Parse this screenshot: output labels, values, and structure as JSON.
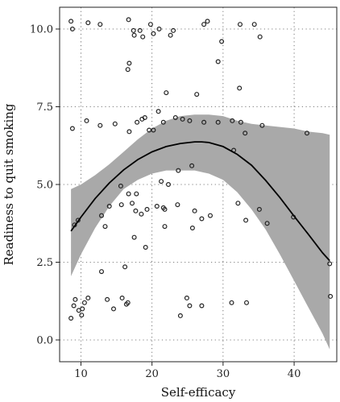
{
  "chart_data": {
    "type": "scatter",
    "title": "",
    "xlabel": "Self-efficacy",
    "ylabel": "Readiness to quit smoking",
    "xlim": [
      7,
      46
    ],
    "ylim": [
      -0.7,
      10.7
    ],
    "xticks": [
      10,
      20,
      30,
      40
    ],
    "yticks": [
      0.0,
      2.5,
      5.0,
      7.5,
      10.0
    ],
    "xtick_labels": [
      "10",
      "20",
      "30",
      "40"
    ],
    "ytick_labels": [
      "0.0",
      "2.5",
      "5.0",
      "7.5",
      "10.0"
    ],
    "grid": true,
    "legend": "none",
    "colors": {
      "band": "#a9a9a9",
      "line": "#000000",
      "points_stroke": "#222222"
    },
    "points": [
      [
        8.6,
        10.25
      ],
      [
        8.8,
        10.0
      ],
      [
        11.0,
        10.2
      ],
      [
        12.7,
        10.15
      ],
      [
        16.7,
        10.3
      ],
      [
        17.4,
        9.95
      ],
      [
        17.5,
        9.8
      ],
      [
        18.3,
        9.95
      ],
      [
        18.7,
        9.75
      ],
      [
        19.8,
        10.15
      ],
      [
        20.2,
        9.85
      ],
      [
        21.0,
        10.0
      ],
      [
        22.6,
        9.8
      ],
      [
        23.0,
        9.95
      ],
      [
        27.3,
        10.15
      ],
      [
        27.8,
        10.25
      ],
      [
        29.8,
        9.6
      ],
      [
        32.4,
        10.15
      ],
      [
        34.4,
        10.15
      ],
      [
        35.2,
        9.75
      ],
      [
        16.6,
        8.7
      ],
      [
        16.8,
        8.9
      ],
      [
        29.3,
        8.95
      ],
      [
        22.0,
        7.95
      ],
      [
        32.3,
        8.1
      ],
      [
        26.3,
        7.9
      ],
      [
        8.8,
        6.8
      ],
      [
        10.8,
        7.05
      ],
      [
        12.7,
        6.9
      ],
      [
        14.8,
        6.95
      ],
      [
        16.8,
        6.7
      ],
      [
        17.9,
        7.0
      ],
      [
        18.6,
        7.1
      ],
      [
        19.0,
        7.15
      ],
      [
        19.6,
        6.75
      ],
      [
        20.2,
        6.75
      ],
      [
        20.9,
        7.35
      ],
      [
        21.6,
        7.0
      ],
      [
        23.3,
        7.15
      ],
      [
        24.3,
        7.1
      ],
      [
        25.3,
        7.05
      ],
      [
        27.3,
        7.0
      ],
      [
        29.3,
        7.0
      ],
      [
        31.3,
        7.05
      ],
      [
        32.5,
        7.0
      ],
      [
        33.1,
        6.65
      ],
      [
        35.5,
        6.9
      ],
      [
        41.8,
        6.65
      ],
      [
        31.5,
        6.1
      ],
      [
        15.6,
        4.95
      ],
      [
        16.7,
        4.7
      ],
      [
        17.2,
        4.4
      ],
      [
        17.8,
        4.7
      ],
      [
        20.7,
        4.3
      ],
      [
        21.3,
        5.1
      ],
      [
        22.3,
        5.0
      ],
      [
        23.7,
        5.45
      ],
      [
        25.6,
        5.6
      ],
      [
        12.9,
        4.0
      ],
      [
        13.4,
        3.65
      ],
      [
        14.0,
        4.3
      ],
      [
        15.7,
        4.35
      ],
      [
        17.7,
        4.15
      ],
      [
        18.5,
        4.05
      ],
      [
        19.3,
        4.2
      ],
      [
        21.6,
        4.25
      ],
      [
        21.8,
        4.2
      ],
      [
        23.6,
        4.35
      ],
      [
        26.0,
        4.15
      ],
      [
        27.0,
        3.9
      ],
      [
        28.2,
        4.0
      ],
      [
        32.1,
        4.4
      ],
      [
        33.2,
        3.85
      ],
      [
        35.1,
        4.2
      ],
      [
        36.2,
        3.75
      ],
      [
        39.9,
        3.95
      ],
      [
        9.1,
        3.7
      ],
      [
        9.6,
        3.85
      ],
      [
        17.5,
        3.3
      ],
      [
        19.1,
        2.98
      ],
      [
        21.8,
        3.65
      ],
      [
        25.7,
        3.6
      ],
      [
        12.9,
        2.2
      ],
      [
        16.2,
        2.35
      ],
      [
        45.0,
        2.45
      ],
      [
        8.6,
        0.7
      ],
      [
        9.0,
        1.1
      ],
      [
        9.2,
        1.3
      ],
      [
        9.7,
        0.95
      ],
      [
        10.1,
        0.8
      ],
      [
        10.2,
        1.0
      ],
      [
        10.5,
        1.2
      ],
      [
        11.0,
        1.35
      ],
      [
        13.7,
        1.3
      ],
      [
        14.6,
        1.0
      ],
      [
        15.8,
        1.35
      ],
      [
        16.4,
        1.15
      ],
      [
        16.6,
        1.2
      ],
      [
        24.0,
        0.78
      ],
      [
        24.9,
        1.35
      ],
      [
        25.3,
        1.1
      ],
      [
        27.0,
        1.1
      ],
      [
        31.2,
        1.2
      ],
      [
        33.3,
        1.2
      ],
      [
        45.1,
        1.4
      ]
    ],
    "fit_line": {
      "x": [
        8.6,
        10,
        12,
        14,
        16,
        18,
        20,
        22,
        24,
        26,
        27,
        28,
        30,
        32,
        34,
        36,
        38,
        40,
        42,
        44,
        45
      ],
      "y": [
        3.5,
        3.95,
        4.55,
        5.05,
        5.47,
        5.8,
        6.05,
        6.22,
        6.32,
        6.37,
        6.37,
        6.35,
        6.22,
        5.97,
        5.62,
        5.13,
        4.58,
        3.98,
        3.4,
        2.8,
        2.55
      ]
    },
    "confidence_band": {
      "x": [
        8.6,
        10,
        12,
        14,
        16,
        18,
        20,
        22,
        24,
        26,
        28,
        30,
        32,
        34,
        36,
        38,
        40,
        42,
        44,
        45
      ],
      "upper": [
        4.85,
        5.0,
        5.3,
        5.65,
        6.05,
        6.45,
        6.8,
        7.05,
        7.2,
        7.25,
        7.25,
        7.2,
        7.05,
        6.95,
        6.9,
        6.85,
        6.8,
        6.7,
        6.65,
        6.6
      ],
      "lower": [
        2.05,
        2.75,
        3.6,
        4.3,
        4.85,
        5.15,
        5.35,
        5.45,
        5.45,
        5.45,
        5.35,
        5.15,
        4.75,
        4.2,
        3.55,
        2.75,
        1.9,
        1.05,
        0.2,
        -0.3
      ]
    }
  }
}
